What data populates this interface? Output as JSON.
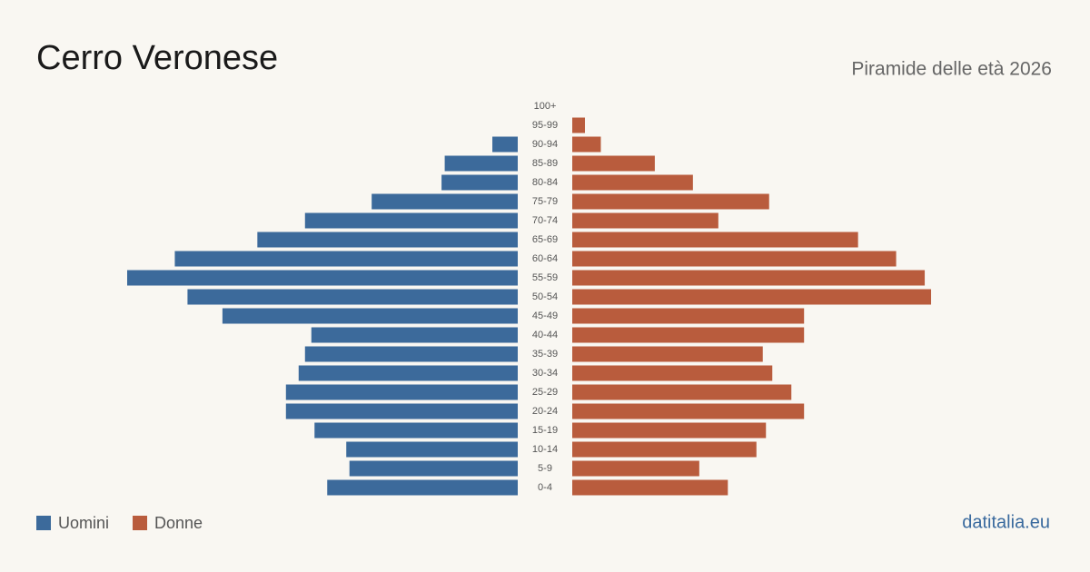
{
  "chart_data": {
    "type": "pyramid",
    "title": "Cerro Veronese",
    "subtitle": "Piramide delle età 2026",
    "categories": [
      "100+",
      "95-99",
      "90-94",
      "85-89",
      "80-84",
      "75-79",
      "70-74",
      "65-69",
      "60-64",
      "55-59",
      "50-54",
      "45-49",
      "40-44",
      "35-39",
      "30-34",
      "25-29",
      "20-24",
      "15-19",
      "10-14",
      "5-9",
      "0-4"
    ],
    "series": [
      {
        "name": "Uomini",
        "color": "#3c6a9b",
        "values": [
          0,
          0,
          8,
          23,
          24,
          46,
          67,
          82,
          108,
          123,
          104,
          93,
          65,
          67,
          69,
          73,
          73,
          64,
          54,
          53,
          60
        ]
      },
      {
        "name": "Donne",
        "color": "#b95c3d",
        "values": [
          0,
          4,
          9,
          26,
          38,
          62,
          46,
          90,
          102,
          111,
          113,
          73,
          73,
          60,
          63,
          69,
          73,
          61,
          58,
          40,
          49
        ]
      }
    ],
    "source": "datitalia.eu"
  }
}
